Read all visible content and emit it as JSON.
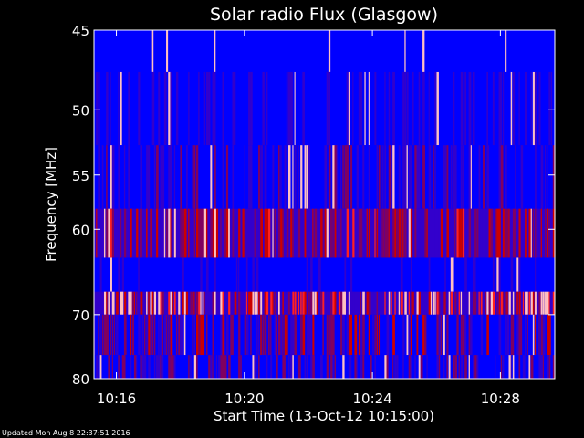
{
  "chart_data": {
    "type": "heatmap",
    "title": "Solar radio Flux (Glasgow)",
    "xlabel": "Start Time (13-Oct-12 10:15:00)",
    "ylabel": "Frequency [MHz]",
    "x_ticks": [
      "10:16",
      "10:20",
      "10:24",
      "10:28"
    ],
    "x_tick_minutes": [
      16,
      20,
      24,
      28
    ],
    "xlim_minutes": [
      15.3,
      29.7
    ],
    "y_ticks": [
      45,
      50,
      55,
      60,
      70,
      80
    ],
    "ylim_mhz": [
      45,
      80
    ],
    "y_scale": "reciprocal",
    "frequency_bands": [
      {
        "from": 45,
        "to": 47.5,
        "intensity": 0.15
      },
      {
        "from": 47.5,
        "to": 52.6,
        "intensity": 0.25
      },
      {
        "from": 52.6,
        "to": 58,
        "intensity": 0.3
      },
      {
        "from": 58,
        "to": 63,
        "intensity": 0.55
      },
      {
        "from": 63,
        "to": 67,
        "intensity": 0.2
      },
      {
        "from": 67,
        "to": 70,
        "intensity": 0.8
      },
      {
        "from": 70,
        "to": 76,
        "intensity": 0.45
      },
      {
        "from": 76,
        "to": 80,
        "intensity": 0.35
      }
    ],
    "colormap": [
      "#0000ff",
      "#3300cc",
      "#800060",
      "#cc0000",
      "#ff2020",
      "#ffc0c0"
    ]
  },
  "footer": {
    "updated": "Updated Mon Aug  8 22:37:51 2016"
  }
}
